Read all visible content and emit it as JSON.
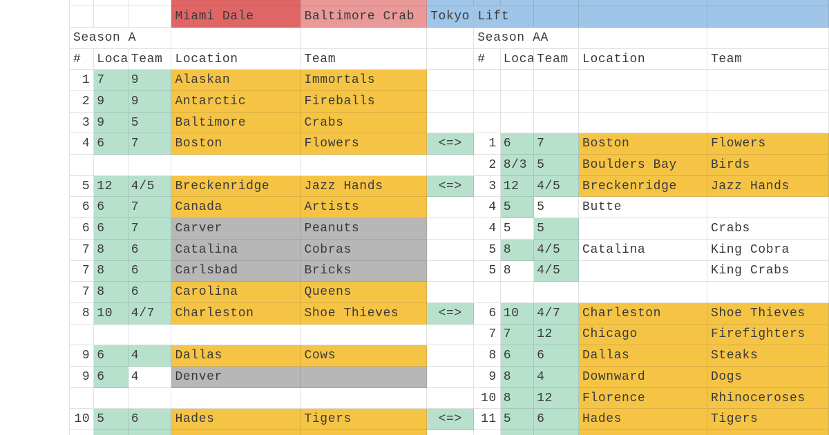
{
  "palette": {
    "match_green": "#b7e1cd",
    "changed_yellow": "#f6c445",
    "removed_gray": "#b7b7b7",
    "banner_red": "#e06666",
    "banner_pink": "#ea9999",
    "banner_blue": "#9fc5e8",
    "grid_line_on_white": "#e2e2e2",
    "text": "#3a3a3a"
  },
  "banner": {
    "red_label": "Miami Dale",
    "pink_label": "Baltimore Crab",
    "blue_label": "Tokyo Lift"
  },
  "swap_glyph": "<=>",
  "left_table": {
    "season_label": "Season A",
    "headers": [
      "#",
      "Loca",
      "Team",
      "Location",
      "Team"
    ]
  },
  "right_table": {
    "season_label": "Season AA",
    "headers": [
      "#",
      "Loca",
      "Team",
      "Location",
      "Team"
    ]
  },
  "rows": [
    {
      "left": {
        "num": "1",
        "loc": "7",
        "team": "9",
        "location": "Alaskan",
        "teamname": "Immortals",
        "bg": [
          "g",
          "g",
          "y",
          "y"
        ]
      },
      "swap": false,
      "right": null
    },
    {
      "left": {
        "num": "2",
        "loc": "9",
        "team": "9",
        "location": "Antarctic",
        "teamname": "Fireballs",
        "bg": [
          "g",
          "g",
          "y",
          "y"
        ]
      },
      "swap": false,
      "right": null
    },
    {
      "left": {
        "num": "3",
        "loc": "9",
        "team": "5",
        "location": "Baltimore",
        "teamname": "Crabs",
        "bg": [
          "g",
          "g",
          "y",
          "y"
        ]
      },
      "swap": false,
      "right": null
    },
    {
      "left": {
        "num": "4",
        "loc": "6",
        "team": "7",
        "location": "Boston",
        "teamname": "Flowers",
        "bg": [
          "g",
          "g",
          "y",
          "y"
        ]
      },
      "swap": true,
      "right": {
        "num": "1",
        "loc": "6",
        "team": "7",
        "location": "Boston",
        "teamname": "Flowers",
        "bg": [
          "g",
          "g",
          "y",
          "y"
        ]
      }
    },
    {
      "left": null,
      "swap": false,
      "right": {
        "num": "2",
        "loc": "8/3",
        "team": "5",
        "location": "Boulders Bay",
        "teamname": "Birds",
        "bg": [
          "g",
          "g",
          "y",
          "y"
        ]
      }
    },
    {
      "left": {
        "num": "5",
        "loc": "12",
        "team": "4/5",
        "location": "Breckenridge",
        "teamname": "Jazz Hands",
        "bg": [
          "g",
          "g",
          "y",
          "y"
        ]
      },
      "swap": true,
      "right": {
        "num": "3",
        "loc": "12",
        "team": "4/5",
        "location": "Breckenridge",
        "teamname": "Jazz Hands",
        "bg": [
          "g",
          "g",
          "y",
          "y"
        ]
      }
    },
    {
      "left": {
        "num": "6",
        "loc": "6",
        "team": "7",
        "location": "Canada",
        "teamname": "Artists",
        "bg": [
          "g",
          "g",
          "y",
          "y"
        ]
      },
      "swap": false,
      "right": {
        "num": "4",
        "loc": "5",
        "team": "5",
        "location": "Butte",
        "teamname": "",
        "bg": [
          "g",
          "w",
          "w",
          "w"
        ]
      }
    },
    {
      "left": {
        "num": "6",
        "loc": "6",
        "team": "7",
        "location": "Carver",
        "teamname": "Peanuts",
        "bg": [
          "g",
          "g",
          "gr",
          "gr"
        ]
      },
      "swap": false,
      "right": {
        "num": "4",
        "loc": "5",
        "team": "5",
        "location": "",
        "teamname": "Crabs",
        "bg": [
          "w",
          "g",
          "w",
          "w"
        ]
      }
    },
    {
      "left": {
        "num": "7",
        "loc": "8",
        "team": "6",
        "location": "Catalina",
        "teamname": "Cobras",
        "bg": [
          "g",
          "g",
          "gr",
          "gr"
        ]
      },
      "swap": false,
      "right": {
        "num": "5",
        "loc": "8",
        "team": "4/5",
        "location": "Catalina",
        "teamname": "King Cobra",
        "bg": [
          "g",
          "g",
          "w",
          "w"
        ]
      }
    },
    {
      "left": {
        "num": "7",
        "loc": "8",
        "team": "6",
        "location": "Carlsbad",
        "teamname": "Bricks",
        "bg": [
          "g",
          "g",
          "gr",
          "gr"
        ]
      },
      "swap": false,
      "right": {
        "num": "5",
        "loc": "8",
        "team": "4/5",
        "location": "",
        "teamname": "King Crabs",
        "bg": [
          "w",
          "g",
          "w",
          "w"
        ]
      }
    },
    {
      "left": {
        "num": "7",
        "loc": "8",
        "team": "6",
        "location": "Carolina",
        "teamname": "Queens",
        "bg": [
          "g",
          "g",
          "y",
          "y"
        ]
      },
      "swap": false,
      "right": null
    },
    {
      "left": {
        "num": "8",
        "loc": "10",
        "team": "4/7",
        "location": "Charleston",
        "teamname": "Shoe Thieves",
        "bg": [
          "g",
          "g",
          "y",
          "y"
        ]
      },
      "swap": true,
      "right": {
        "num": "6",
        "loc": "10",
        "team": "4/7",
        "location": "Charleston",
        "teamname": "Shoe Thieves",
        "bg": [
          "g",
          "g",
          "y",
          "y"
        ]
      }
    },
    {
      "left": null,
      "swap": false,
      "right": {
        "num": "7",
        "loc": "7",
        "team": "12",
        "location": "Chicago",
        "teamname": "Firefighters",
        "bg": [
          "g",
          "g",
          "y",
          "y"
        ]
      }
    },
    {
      "left": {
        "num": "9",
        "loc": "6",
        "team": "4",
        "location": "Dallas",
        "teamname": "Cows",
        "bg": [
          "g",
          "g",
          "y",
          "y"
        ]
      },
      "swap": false,
      "right": {
        "num": "8",
        "loc": "6",
        "team": "6",
        "location": "Dallas",
        "teamname": "Steaks",
        "bg": [
          "g",
          "g",
          "y",
          "y"
        ]
      }
    },
    {
      "left": {
        "num": "9",
        "loc": "6",
        "team": "4",
        "location": "Denver",
        "teamname": "",
        "bg": [
          "g",
          "w",
          "gr",
          "gr"
        ]
      },
      "swap": false,
      "right": {
        "num": "9",
        "loc": "8",
        "team": "4",
        "location": "Downward",
        "teamname": "Dogs",
        "bg": [
          "g",
          "g",
          "y",
          "y"
        ]
      }
    },
    {
      "left": null,
      "swap": false,
      "right": {
        "num": "10",
        "loc": "8",
        "team": "12",
        "location": "Florence",
        "teamname": "Rhinoceroses",
        "bg": [
          "g",
          "g",
          "y",
          "y"
        ]
      }
    },
    {
      "left": {
        "num": "10",
        "loc": "5",
        "team": "6",
        "location": "Hades",
        "teamname": "Tigers",
        "bg": [
          "g",
          "g",
          "y",
          "y"
        ]
      },
      "swap": true,
      "right": {
        "num": "11",
        "loc": "5",
        "team": "6",
        "location": "Hades",
        "teamname": "Tigers",
        "bg": [
          "g",
          "g",
          "y",
          "y"
        ]
      }
    },
    {
      "left": {
        "num": "",
        "loc": "",
        "team": "",
        "location": "",
        "teamname": "",
        "bg": [
          "g",
          "g",
          "y",
          "y"
        ]
      },
      "swap": false,
      "right": {
        "num": "",
        "loc": "",
        "team": "",
        "location": "",
        "teamname": "",
        "bg": [
          "g",
          "g",
          "y",
          "y"
        ]
      }
    }
  ]
}
